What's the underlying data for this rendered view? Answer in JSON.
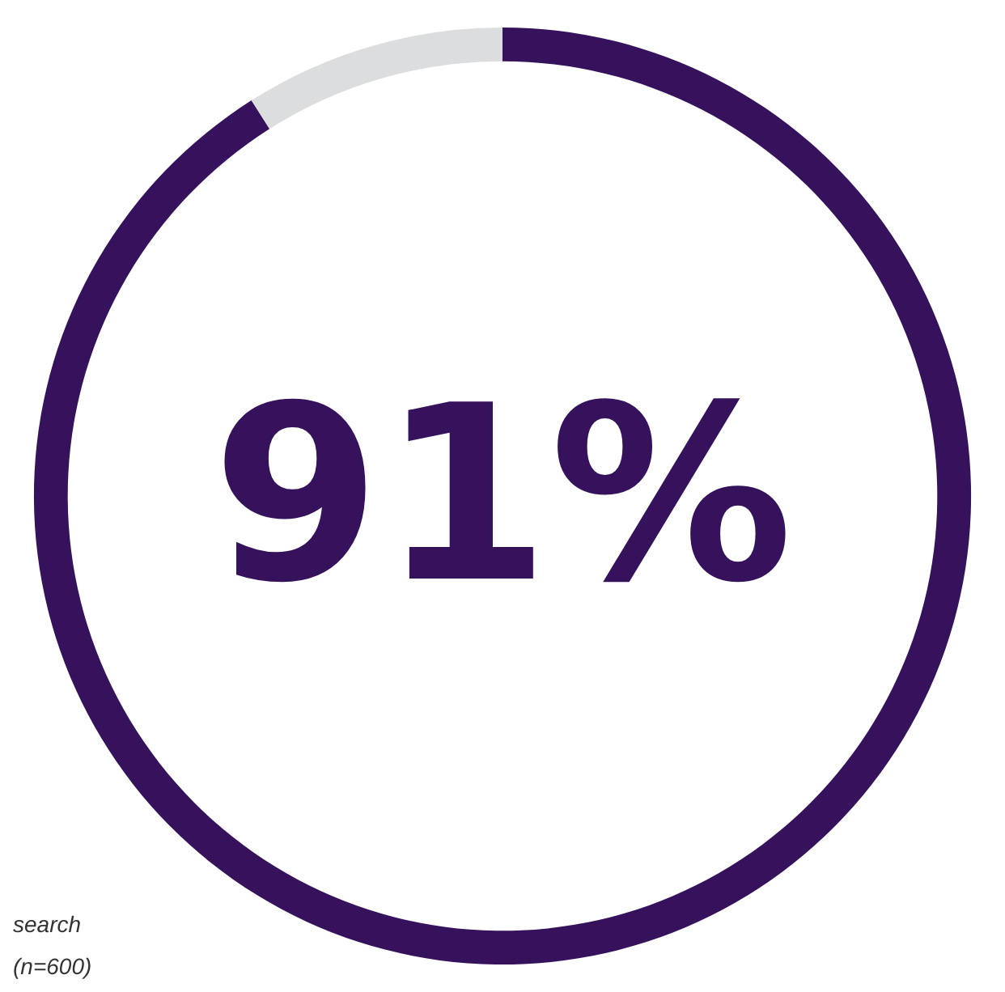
{
  "chart_data": {
    "type": "donut",
    "categories": [
      null,
      null
    ],
    "values": [
      91,
      9
    ],
    "colors": [
      "#36115c",
      "#dcdddf"
    ],
    "annotations": [
      "91%",
      "search",
      "(n=600)"
    ]
  }
}
